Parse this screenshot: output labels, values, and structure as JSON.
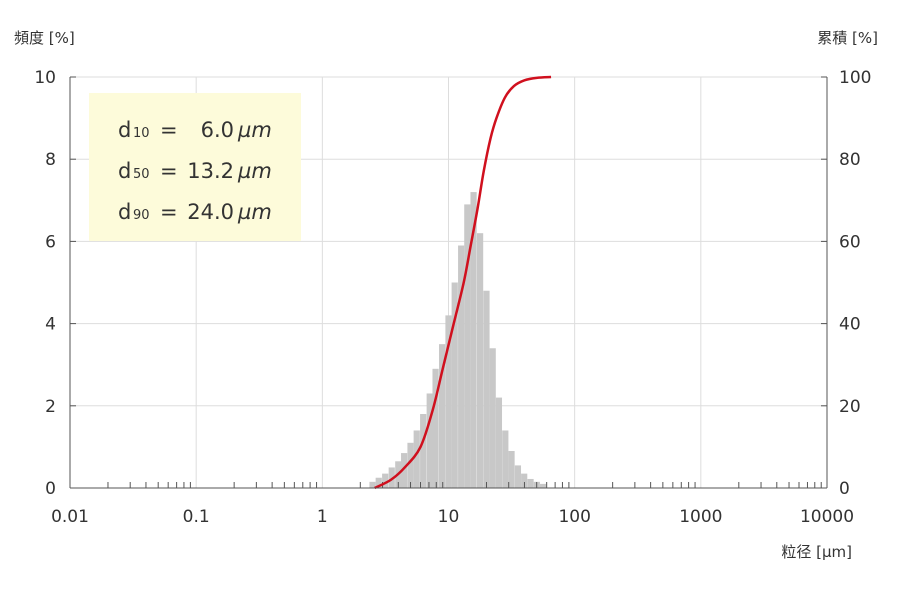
{
  "chart_data": {
    "type": "bar",
    "y_left_label": "頻度 [%]",
    "y_right_label": "累積 [%]",
    "x_label": "粒径 [µm]",
    "x_scale": "log",
    "xlim": [
      0.01,
      10000
    ],
    "ylim_left": [
      0,
      10
    ],
    "ylim_right": [
      0,
      100
    ],
    "x_ticks": [
      "0.01",
      "0.1",
      "1",
      "10",
      "100",
      "1000",
      "10000"
    ],
    "y_left_ticks": [
      "0",
      "2",
      "4",
      "6",
      "8",
      "10"
    ],
    "y_right_ticks": [
      "0",
      "20",
      "40",
      "60",
      "80",
      "100"
    ],
    "grid": true,
    "stats": [
      {
        "label": "d",
        "sub": "10",
        "value": "6.0",
        "unit": "µm"
      },
      {
        "label": "d",
        "sub": "50",
        "value": "13.2",
        "unit": "µm"
      },
      {
        "label": "d",
        "sub": "90",
        "value": "24.0",
        "unit": "µm"
      }
    ],
    "histogram": {
      "name": "頻度",
      "color": "#c8c8c8",
      "bins": [
        {
          "x": 2.5,
          "y": 0.15
        },
        {
          "x": 2.8,
          "y": 0.25
        },
        {
          "x": 3.15,
          "y": 0.35
        },
        {
          "x": 3.55,
          "y": 0.5
        },
        {
          "x": 4.0,
          "y": 0.65
        },
        {
          "x": 4.45,
          "y": 0.85
        },
        {
          "x": 5.0,
          "y": 1.1
        },
        {
          "x": 5.6,
          "y": 1.4
        },
        {
          "x": 6.3,
          "y": 1.8
        },
        {
          "x": 7.1,
          "y": 2.3
        },
        {
          "x": 7.9,
          "y": 2.9
        },
        {
          "x": 8.9,
          "y": 3.5
        },
        {
          "x": 10.0,
          "y": 4.2
        },
        {
          "x": 11.2,
          "y": 5.0
        },
        {
          "x": 12.6,
          "y": 5.9
        },
        {
          "x": 14.1,
          "y": 6.9
        },
        {
          "x": 15.8,
          "y": 7.2
        },
        {
          "x": 17.8,
          "y": 6.2
        },
        {
          "x": 20.0,
          "y": 4.8
        },
        {
          "x": 22.4,
          "y": 3.4
        },
        {
          "x": 25.1,
          "y": 2.2
        },
        {
          "x": 28.2,
          "y": 1.4
        },
        {
          "x": 31.6,
          "y": 0.9
        },
        {
          "x": 35.5,
          "y": 0.55
        },
        {
          "x": 39.8,
          "y": 0.35
        },
        {
          "x": 44.7,
          "y": 0.22
        },
        {
          "x": 50.1,
          "y": 0.15
        },
        {
          "x": 56.2,
          "y": 0.1
        }
      ]
    },
    "cumulative": {
      "name": "累積",
      "color": "#d0101e",
      "points": [
        [
          2.6,
          0
        ],
        [
          3.5,
          2
        ],
        [
          4.5,
          5
        ],
        [
          6.0,
          10
        ],
        [
          7.5,
          19
        ],
        [
          9.0,
          29
        ],
        [
          11.0,
          40
        ],
        [
          13.2,
          50
        ],
        [
          15.0,
          59
        ],
        [
          17.0,
          68
        ],
        [
          19.0,
          77
        ],
        [
          21.5,
          85
        ],
        [
          24.0,
          90
        ],
        [
          28.0,
          95
        ],
        [
          33.0,
          97.8
        ],
        [
          40.0,
          99.2
        ],
        [
          50.0,
          99.8
        ],
        [
          65.0,
          100
        ]
      ]
    }
  }
}
